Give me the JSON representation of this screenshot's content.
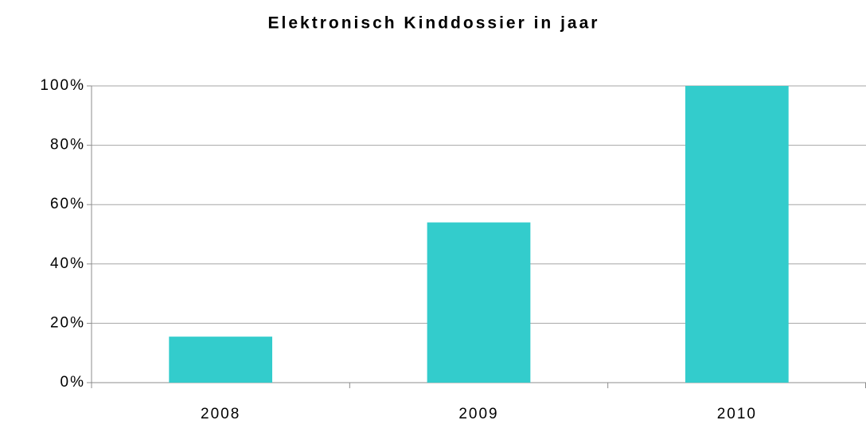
{
  "chart_data": {
    "type": "bar",
    "title": "Elektronisch Kinddossier in jaar",
    "categories": [
      "2008",
      "2009",
      "2010"
    ],
    "values": [
      15.5,
      54,
      100
    ],
    "color": "#33cccc",
    "ylim": [
      0,
      100
    ],
    "yticks": [
      {
        "value": 0,
        "label": "0%"
      },
      {
        "value": 20,
        "label": "20%"
      },
      {
        "value": 40,
        "label": "40%"
      },
      {
        "value": 60,
        "label": "60%"
      },
      {
        "value": 80,
        "label": "80%"
      },
      {
        "value": 100,
        "label": "100%"
      }
    ],
    "grid": true
  }
}
